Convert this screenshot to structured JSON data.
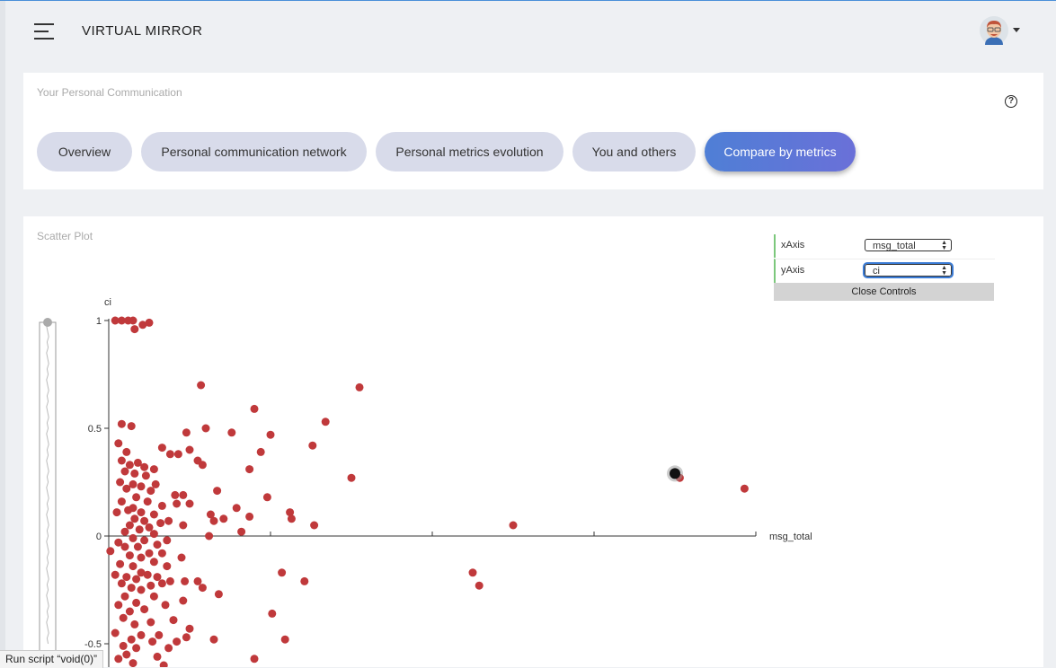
{
  "app": {
    "title": "VIRTUAL MIRROR"
  },
  "header": {
    "avatar_icon": "user-avatar-icon",
    "menu_icon": "hamburger-icon"
  },
  "communication_card": {
    "title": "Your Personal Communication",
    "help_label": "?",
    "tabs": [
      {
        "label": "Overview",
        "active": false
      },
      {
        "label": "Personal communication network",
        "active": false
      },
      {
        "label": "Personal metrics evolution",
        "active": false
      },
      {
        "label": "You and others",
        "active": false
      },
      {
        "label": "Compare by metrics",
        "active": true
      }
    ]
  },
  "scatter_card": {
    "title": "Scatter Plot",
    "controls": {
      "x_label": "xAxis",
      "x_value": "msg_total",
      "y_label": "yAxis",
      "y_value": "ci",
      "close_label": "Close Controls"
    }
  },
  "status_bar": {
    "text": "Run script “void(0)”"
  },
  "colors": {
    "point": "#c0393b",
    "highlight": "#111111",
    "accent": "#5a79d6"
  },
  "chart_data": {
    "type": "scatter",
    "xlabel": "msg_total",
    "ylabel": "ci",
    "x_range": [
      0,
      4
    ],
    "y_range": [
      -0.6,
      1.0
    ],
    "ytick_labels": [
      "1",
      "0.5",
      "0",
      "-0.5"
    ],
    "yticks": [
      1,
      0.5,
      0,
      -0.5
    ],
    "xticks": [
      0,
      1,
      2,
      3,
      4
    ],
    "highlight": {
      "x": 3.5,
      "y": 0.29
    },
    "points": [
      [
        0.04,
        1.0
      ],
      [
        0.08,
        1.0
      ],
      [
        0.12,
        1.0
      ],
      [
        0.15,
        1.0
      ],
      [
        0.16,
        0.96
      ],
      [
        0.21,
        0.98
      ],
      [
        0.25,
        0.99
      ],
      [
        0.57,
        0.7
      ],
      [
        1.55,
        0.69
      ],
      [
        0.9,
        0.59
      ],
      [
        1.34,
        0.53
      ],
      [
        0.08,
        0.52
      ],
      [
        0.14,
        0.51
      ],
      [
        0.6,
        0.5
      ],
      [
        0.48,
        0.48
      ],
      [
        0.76,
        0.48
      ],
      [
        1.0,
        0.47
      ],
      [
        0.06,
        0.43
      ],
      [
        1.26,
        0.42
      ],
      [
        0.33,
        0.41
      ],
      [
        0.5,
        0.4
      ],
      [
        0.11,
        0.39
      ],
      [
        0.38,
        0.38
      ],
      [
        0.43,
        0.38
      ],
      [
        0.94,
        0.39
      ],
      [
        0.55,
        0.35
      ],
      [
        0.08,
        0.35
      ],
      [
        0.18,
        0.34
      ],
      [
        0.13,
        0.33
      ],
      [
        0.22,
        0.32
      ],
      [
        0.58,
        0.33
      ],
      [
        0.28,
        0.31
      ],
      [
        0.87,
        0.31
      ],
      [
        1.5,
        0.27
      ],
      [
        0.1,
        0.3
      ],
      [
        0.16,
        0.29
      ],
      [
        0.23,
        0.28
      ],
      [
        0.07,
        0.25
      ],
      [
        0.15,
        0.24
      ],
      [
        0.29,
        0.24
      ],
      [
        0.2,
        0.23
      ],
      [
        0.11,
        0.22
      ],
      [
        0.26,
        0.21
      ],
      [
        0.67,
        0.21
      ],
      [
        0.41,
        0.19
      ],
      [
        0.46,
        0.19
      ],
      [
        0.98,
        0.18
      ],
      [
        0.17,
        0.18
      ],
      [
        0.24,
        0.16
      ],
      [
        0.08,
        0.16
      ],
      [
        0.15,
        0.13
      ],
      [
        0.33,
        0.14
      ],
      [
        0.42,
        0.15
      ],
      [
        0.5,
        0.15
      ],
      [
        0.79,
        0.13
      ],
      [
        0.12,
        0.12
      ],
      [
        0.2,
        0.11
      ],
      [
        0.05,
        0.11
      ],
      [
        0.28,
        0.1
      ],
      [
        0.63,
        0.1
      ],
      [
        1.12,
        0.11
      ],
      [
        0.87,
        0.09
      ],
      [
        0.16,
        0.08
      ],
      [
        0.22,
        0.07
      ],
      [
        0.65,
        0.07
      ],
      [
        0.71,
        0.08
      ],
      [
        1.13,
        0.08
      ],
      [
        0.37,
        0.07
      ],
      [
        0.13,
        0.05
      ],
      [
        0.25,
        0.04
      ],
      [
        0.32,
        0.06
      ],
      [
        0.46,
        0.05
      ],
      [
        0.19,
        0.03
      ],
      [
        1.27,
        0.05
      ],
      [
        2.5,
        0.05
      ],
      [
        0.82,
        0.02
      ],
      [
        0.1,
        0.02
      ],
      [
        0.28,
        0.01
      ],
      [
        0.62,
        0.0
      ],
      [
        0.15,
        -0.01
      ],
      [
        0.22,
        -0.02
      ],
      [
        0.36,
        -0.02
      ],
      [
        0.06,
        -0.03
      ],
      [
        0.3,
        -0.04
      ],
      [
        0.1,
        -0.05
      ],
      [
        0.18,
        -0.05
      ],
      [
        0.01,
        -0.07
      ],
      [
        0.25,
        -0.08
      ],
      [
        0.33,
        -0.08
      ],
      [
        0.13,
        -0.09
      ],
      [
        0.2,
        -0.1
      ],
      [
        0.45,
        -0.1
      ],
      [
        0.07,
        -0.13
      ],
      [
        0.28,
        -0.12
      ],
      [
        0.15,
        -0.14
      ],
      [
        0.36,
        -0.14
      ],
      [
        1.07,
        -0.17
      ],
      [
        0.04,
        -0.18
      ],
      [
        0.2,
        -0.17
      ],
      [
        0.24,
        -0.18
      ],
      [
        0.11,
        -0.19
      ],
      [
        2.25,
        -0.17
      ],
      [
        0.3,
        -0.19
      ],
      [
        0.17,
        -0.2
      ],
      [
        0.55,
        -0.21
      ],
      [
        0.47,
        -0.21
      ],
      [
        0.38,
        -0.21
      ],
      [
        1.21,
        -0.21
      ],
      [
        0.08,
        -0.22
      ],
      [
        0.26,
        -0.23
      ],
      [
        0.14,
        -0.24
      ],
      [
        0.33,
        -0.22
      ],
      [
        0.58,
        -0.24
      ],
      [
        0.2,
        -0.25
      ],
      [
        2.29,
        -0.23
      ],
      [
        0.68,
        -0.27
      ],
      [
        0.1,
        -0.28
      ],
      [
        0.28,
        -0.28
      ],
      [
        0.46,
        -0.3
      ],
      [
        0.17,
        -0.31
      ],
      [
        0.06,
        -0.32
      ],
      [
        0.35,
        -0.32
      ],
      [
        0.22,
        -0.34
      ],
      [
        0.13,
        -0.35
      ],
      [
        1.01,
        -0.36
      ],
      [
        0.09,
        -0.38
      ],
      [
        0.4,
        -0.39
      ],
      [
        0.26,
        -0.4
      ],
      [
        0.16,
        -0.41
      ],
      [
        0.5,
        -0.43
      ],
      [
        0.04,
        -0.45
      ],
      [
        0.31,
        -0.46
      ],
      [
        0.2,
        -0.46
      ],
      [
        0.48,
        -0.47
      ],
      [
        0.65,
        -0.48
      ],
      [
        1.09,
        -0.48
      ],
      [
        0.14,
        -0.48
      ],
      [
        0.27,
        -0.49
      ],
      [
        0.42,
        -0.49
      ],
      [
        0.09,
        -0.51
      ],
      [
        0.17,
        -0.52
      ],
      [
        0.37,
        -0.52
      ],
      [
        0.11,
        -0.55
      ],
      [
        0.06,
        -0.57
      ],
      [
        0.3,
        -0.56
      ],
      [
        0.9,
        -0.57
      ],
      [
        0.15,
        -0.59
      ],
      [
        0.34,
        -0.6
      ],
      [
        3.53,
        0.27
      ],
      [
        3.93,
        0.22
      ]
    ]
  }
}
